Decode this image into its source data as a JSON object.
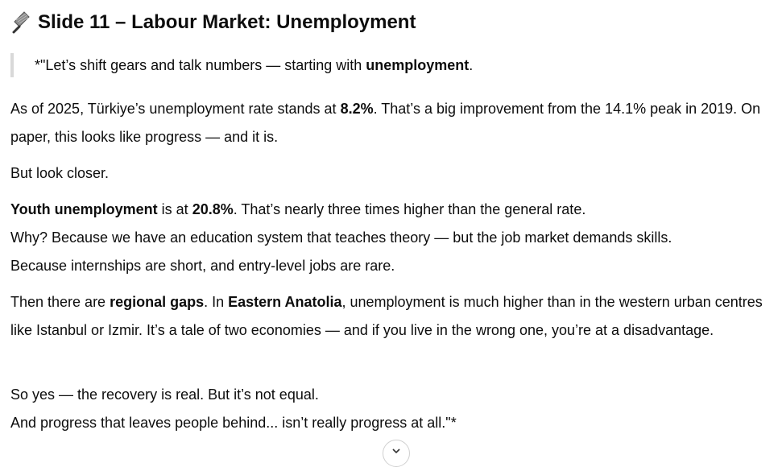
{
  "heading": {
    "icon": "microphone-icon",
    "title": "Slide 11 – Labour Market: Unemployment"
  },
  "quote": {
    "prefix": "*\"Let’s shift gears and talk numbers — starting with ",
    "bold": "unemployment",
    "suffix": "."
  },
  "p1": {
    "t1": "As of 2025, Türkiye’s unemployment rate stands at ",
    "b1": "8.2%",
    "t2": ". That’s a big improvement from the 14.1% peak in 2019. On paper, this looks like progress — and it is."
  },
  "p2": {
    "t1": "But look closer."
  },
  "p3": {
    "b1": "Youth unemployment",
    "t1": " is at ",
    "b2": "20.8%",
    "t2": ". That’s nearly three times higher than the general rate.",
    "line2": "Why? Because we have an education system that teaches theory — but the job market demands skills.",
    "line3": "Because internships are short, and entry-level jobs are rare."
  },
  "p4": {
    "t1": "Then there are ",
    "b1": "regional gaps",
    "t2": ". In ",
    "b2": "Eastern Anatolia",
    "t3": ", unemployment is much higher than in the western urban centres like Istanbul or Izmir. It’s a tale of two economies — and if you live in the wrong one, you’re at a disadvantage."
  },
  "p5": {
    "line1": "So yes — the recovery is real. But it’s not equal.",
    "line2": "And progress that leaves people behind... isn’t really progress at all.\"*"
  },
  "scroll": {
    "icon": "chevron-down-icon"
  }
}
